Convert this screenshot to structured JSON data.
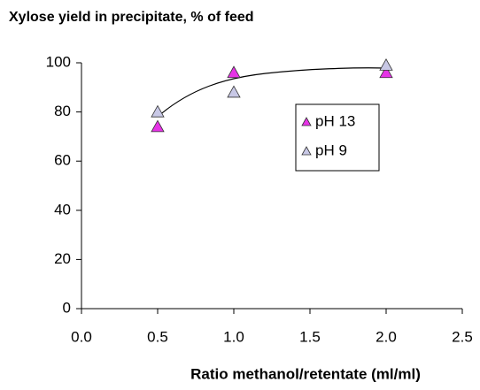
{
  "chart_data": {
    "type": "scatter",
    "title": "Xylose yield in precipitate, % of feed",
    "x_label": "Ratio methanol/retentate (ml/ml)",
    "xlim": [
      0,
      2.5
    ],
    "xticks": [
      {
        "value": 0,
        "label": "0.0"
      },
      {
        "value": 0.5,
        "label": "0.5"
      },
      {
        "value": 1,
        "label": "1.0"
      },
      {
        "value": 1.5,
        "label": "1.5"
      },
      {
        "value": 2,
        "label": "2.0"
      },
      {
        "value": 2.5,
        "label": "2.5"
      }
    ],
    "ylim": [
      0,
      100
    ],
    "yticks": [
      0,
      20,
      40,
      60,
      80,
      100
    ],
    "series": [
      {
        "name": "pH 13",
        "color": "#e633e6",
        "x": [
          0.5,
          1,
          2
        ],
        "values": [
          74,
          96,
          96
        ]
      },
      {
        "name": "pH 9",
        "color": "#c8c8e6",
        "x": [
          0.5,
          1,
          2
        ],
        "values": [
          80,
          88,
          99
        ]
      }
    ]
  }
}
